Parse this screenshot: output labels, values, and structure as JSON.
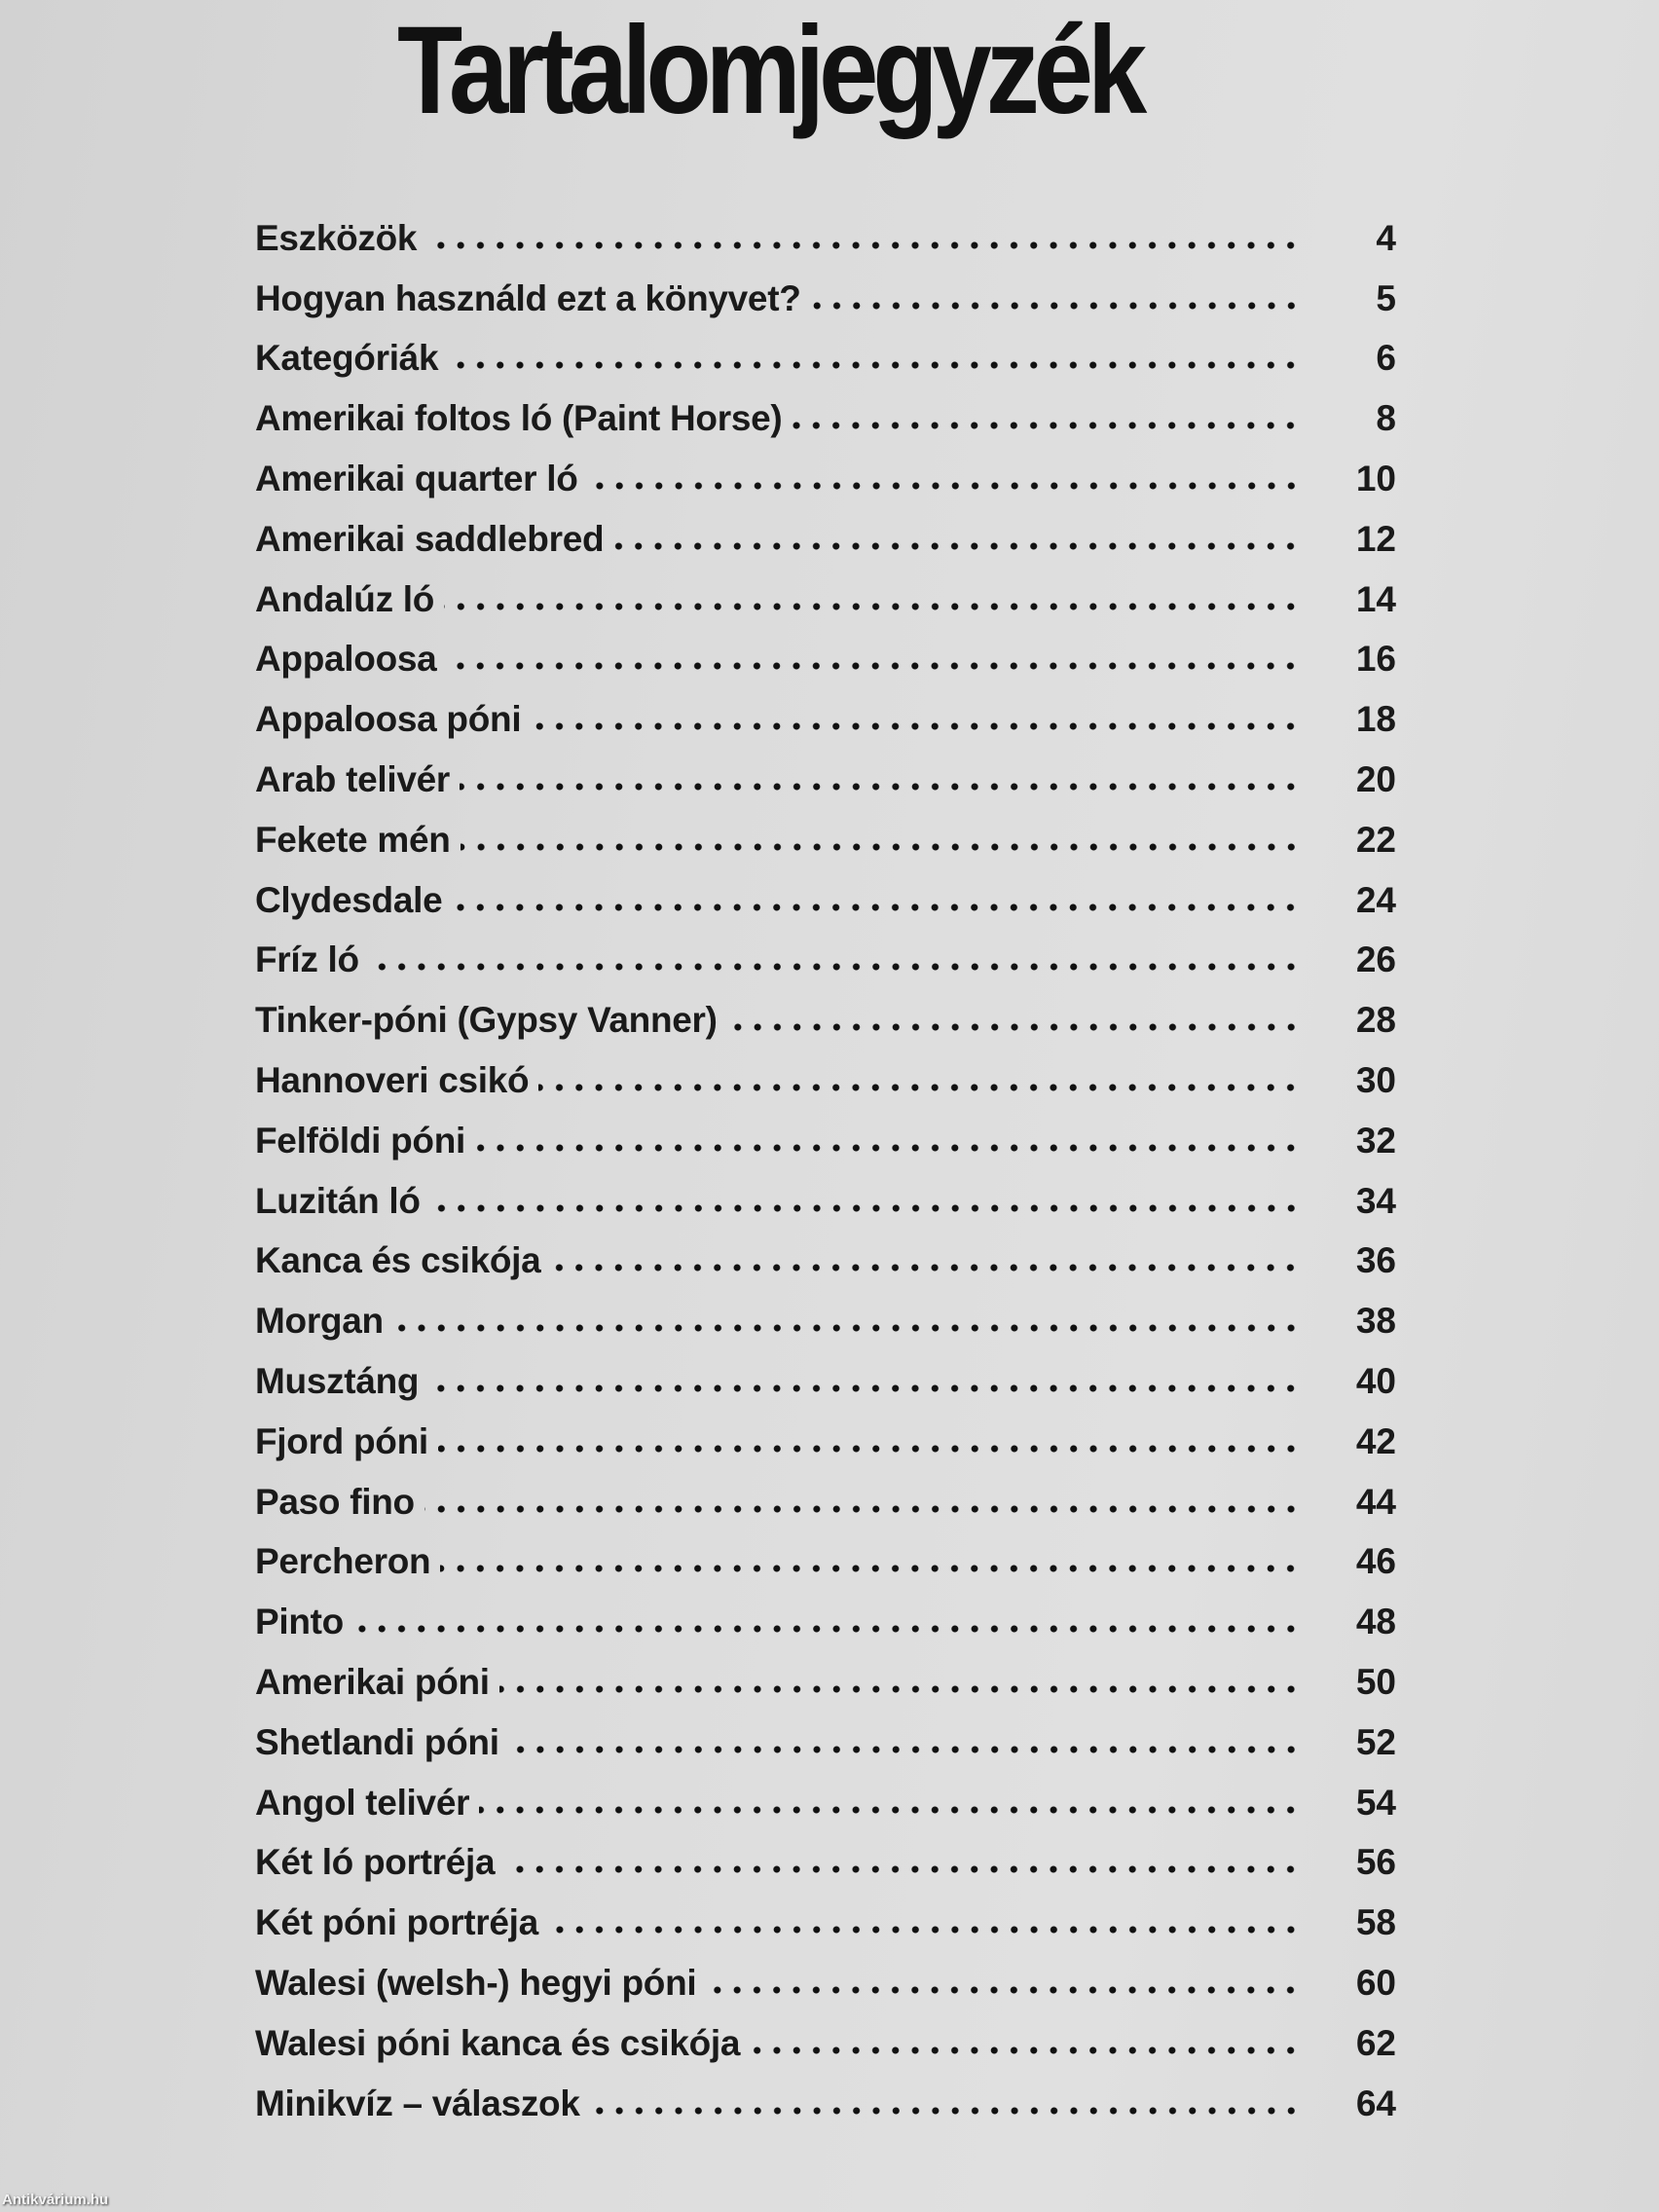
{
  "title": "Tartalomjegyzék",
  "entries": [
    {
      "label": "Eszközök",
      "page": "4"
    },
    {
      "label": "Hogyan használd ezt a könyvet?",
      "page": "5"
    },
    {
      "label": "Kategóriák",
      "page": "6"
    },
    {
      "label": "Amerikai foltos ló (Paint Horse)",
      "page": "8"
    },
    {
      "label": "Amerikai quarter ló",
      "page": "10"
    },
    {
      "label": "Amerikai saddlebred",
      "page": "12"
    },
    {
      "label": "Andalúz ló",
      "page": "14"
    },
    {
      "label": "Appaloosa",
      "page": "16"
    },
    {
      "label": "Appaloosa póni",
      "page": "18"
    },
    {
      "label": "Arab telivér",
      "page": "20"
    },
    {
      "label": "Fekete mén",
      "page": "22"
    },
    {
      "label": "Clydesdale",
      "page": "24"
    },
    {
      "label": "Fríz ló",
      "page": "26"
    },
    {
      "label": "Tinker-póni (Gypsy Vanner)",
      "page": "28"
    },
    {
      "label": "Hannoveri csikó",
      "page": "30"
    },
    {
      "label": "Felföldi póni",
      "page": "32"
    },
    {
      "label": "Luzitán ló",
      "page": "34"
    },
    {
      "label": "Kanca és csikója",
      "page": "36"
    },
    {
      "label": "Morgan",
      "page": "38"
    },
    {
      "label": "Musztáng",
      "page": "40"
    },
    {
      "label": "Fjord póni",
      "page": "42"
    },
    {
      "label": "Paso fino",
      "page": "44"
    },
    {
      "label": "Percheron",
      "page": "46"
    },
    {
      "label": "Pinto",
      "page": "48"
    },
    {
      "label": "Amerikai póni",
      "page": "50"
    },
    {
      "label": "Shetlandi póni",
      "page": "52"
    },
    {
      "label": "Angol telivér",
      "page": "54"
    },
    {
      "label": "Két ló portréja",
      "page": "56"
    },
    {
      "label": "Két póni portréja",
      "page": "58"
    },
    {
      "label": "Walesi (welsh-) hegyi póni",
      "page": "60"
    },
    {
      "label": "Walesi póni kanca és csikója",
      "page": "62"
    },
    {
      "label": "Minikvíz – válaszok",
      "page": "64"
    }
  ],
  "watermark": "Antikvárium.hu"
}
